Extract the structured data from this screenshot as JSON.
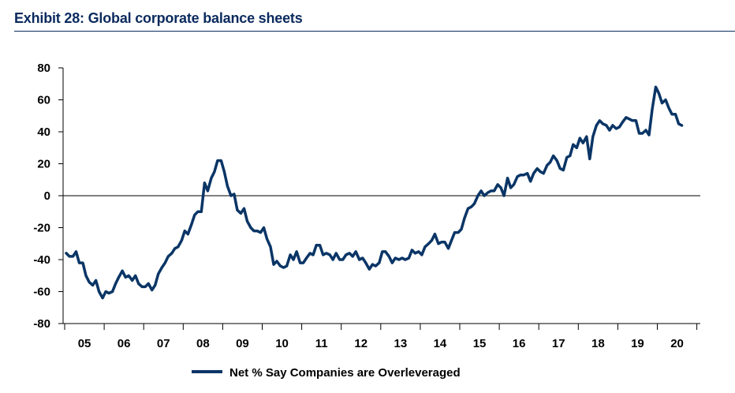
{
  "title": "Exhibit 28: Global corporate balance sheets",
  "colors": {
    "series": "#0a3566",
    "title": "#0a2a5e",
    "axis": "#000000"
  },
  "chart_data": {
    "type": "line",
    "ylim": [
      -80,
      80
    ],
    "yticks": [
      "80",
      "60",
      "40",
      "20",
      "0",
      "-20",
      "-40",
      "-60",
      "-80"
    ],
    "xlabels": [
      "05",
      "06",
      "07",
      "08",
      "09",
      "10",
      "11",
      "12",
      "13",
      "14",
      "15",
      "16",
      "17",
      "18",
      "19",
      "20"
    ],
    "legend_placement": "bottom-center",
    "grid": false,
    "series": [
      {
        "name": "Net % Say Companies are Overleveraged",
        "points": [
          [
            2005.0,
            -36
          ],
          [
            2005.08,
            -38
          ],
          [
            2005.17,
            -38
          ],
          [
            2005.25,
            -35
          ],
          [
            2005.33,
            -42
          ],
          [
            2005.42,
            -42
          ],
          [
            2005.5,
            -50
          ],
          [
            2005.58,
            -54
          ],
          [
            2005.67,
            -56
          ],
          [
            2005.75,
            -53
          ],
          [
            2005.83,
            -60
          ],
          [
            2005.92,
            -64
          ],
          [
            2006.0,
            -60
          ],
          [
            2006.08,
            -61
          ],
          [
            2006.17,
            -60
          ],
          [
            2006.25,
            -55
          ],
          [
            2006.33,
            -51
          ],
          [
            2006.42,
            -47
          ],
          [
            2006.5,
            -51
          ],
          [
            2006.58,
            -50
          ],
          [
            2006.67,
            -53
          ],
          [
            2006.75,
            -50
          ],
          [
            2006.83,
            -55
          ],
          [
            2006.92,
            -57
          ],
          [
            2007.0,
            -57
          ],
          [
            2007.08,
            -55
          ],
          [
            2007.17,
            -59
          ],
          [
            2007.25,
            -56
          ],
          [
            2007.33,
            -49
          ],
          [
            2007.42,
            -45
          ],
          [
            2007.5,
            -42
          ],
          [
            2007.58,
            -38
          ],
          [
            2007.67,
            -36
          ],
          [
            2007.75,
            -33
          ],
          [
            2007.83,
            -32
          ],
          [
            2007.92,
            -28
          ],
          [
            2008.0,
            -22
          ],
          [
            2008.08,
            -24
          ],
          [
            2008.17,
            -18
          ],
          [
            2008.25,
            -12
          ],
          [
            2008.33,
            -10
          ],
          [
            2008.42,
            -10
          ],
          [
            2008.5,
            8
          ],
          [
            2008.58,
            3
          ],
          [
            2008.67,
            11
          ],
          [
            2008.75,
            15
          ],
          [
            2008.83,
            22
          ],
          [
            2008.92,
            22
          ],
          [
            2009.0,
            15
          ],
          [
            2009.08,
            6
          ],
          [
            2009.17,
            0
          ],
          [
            2009.25,
            1
          ],
          [
            2009.33,
            -9
          ],
          [
            2009.42,
            -11
          ],
          [
            2009.5,
            -8
          ],
          [
            2009.58,
            -16
          ],
          [
            2009.67,
            -20
          ],
          [
            2009.75,
            -22
          ],
          [
            2009.83,
            -22
          ],
          [
            2009.92,
            -23
          ],
          [
            2010.0,
            -20
          ],
          [
            2010.08,
            -27
          ],
          [
            2010.17,
            -32
          ],
          [
            2010.25,
            -43
          ],
          [
            2010.33,
            -41
          ],
          [
            2010.42,
            -44
          ],
          [
            2010.5,
            -45
          ],
          [
            2010.58,
            -44
          ],
          [
            2010.67,
            -37
          ],
          [
            2010.75,
            -40
          ],
          [
            2010.83,
            -35
          ],
          [
            2010.92,
            -42
          ],
          [
            2011.0,
            -42
          ],
          [
            2011.08,
            -39
          ],
          [
            2011.17,
            -36
          ],
          [
            2011.25,
            -37
          ],
          [
            2011.33,
            -31
          ],
          [
            2011.42,
            -31
          ],
          [
            2011.5,
            -37
          ],
          [
            2011.58,
            -36
          ],
          [
            2011.67,
            -37
          ],
          [
            2011.75,
            -40
          ],
          [
            2011.83,
            -36
          ],
          [
            2011.92,
            -40
          ],
          [
            2012.0,
            -40
          ],
          [
            2012.08,
            -37
          ],
          [
            2012.17,
            -36
          ],
          [
            2012.25,
            -38
          ],
          [
            2012.33,
            -35
          ],
          [
            2012.42,
            -40
          ],
          [
            2012.5,
            -39
          ],
          [
            2012.58,
            -42
          ],
          [
            2012.67,
            -46
          ],
          [
            2012.75,
            -43
          ],
          [
            2012.83,
            -44
          ],
          [
            2012.92,
            -42
          ],
          [
            2013.0,
            -35
          ],
          [
            2013.08,
            -35
          ],
          [
            2013.17,
            -38
          ],
          [
            2013.25,
            -42
          ],
          [
            2013.33,
            -39
          ],
          [
            2013.42,
            -40
          ],
          [
            2013.5,
            -39
          ],
          [
            2013.58,
            -40
          ],
          [
            2013.67,
            -39
          ],
          [
            2013.75,
            -34
          ],
          [
            2013.83,
            -36
          ],
          [
            2013.92,
            -35
          ],
          [
            2014.0,
            -37
          ],
          [
            2014.08,
            -32
          ],
          [
            2014.17,
            -30
          ],
          [
            2014.25,
            -28
          ],
          [
            2014.33,
            -24
          ],
          [
            2014.42,
            -30
          ],
          [
            2014.5,
            -29
          ],
          [
            2014.58,
            -29
          ],
          [
            2014.67,
            -33
          ],
          [
            2014.75,
            -28
          ],
          [
            2014.83,
            -23
          ],
          [
            2014.92,
            -23
          ],
          [
            2015.0,
            -21
          ],
          [
            2015.08,
            -14
          ],
          [
            2015.17,
            -8
          ],
          [
            2015.25,
            -7
          ],
          [
            2015.33,
            -5
          ],
          [
            2015.42,
            0
          ],
          [
            2015.5,
            3
          ],
          [
            2015.58,
            0
          ],
          [
            2015.67,
            2
          ],
          [
            2015.75,
            3
          ],
          [
            2015.83,
            3
          ],
          [
            2015.92,
            7
          ],
          [
            2016.0,
            5
          ],
          [
            2016.08,
            0
          ],
          [
            2016.17,
            11
          ],
          [
            2016.25,
            5
          ],
          [
            2016.33,
            7
          ],
          [
            2016.42,
            12
          ],
          [
            2016.5,
            13
          ],
          [
            2016.58,
            13
          ],
          [
            2016.67,
            14
          ],
          [
            2016.75,
            9
          ],
          [
            2016.83,
            14
          ],
          [
            2016.92,
            17
          ],
          [
            2017.0,
            15
          ],
          [
            2017.08,
            14
          ],
          [
            2017.17,
            19
          ],
          [
            2017.25,
            21
          ],
          [
            2017.33,
            25
          ],
          [
            2017.42,
            22
          ],
          [
            2017.5,
            17
          ],
          [
            2017.58,
            16
          ],
          [
            2017.67,
            24
          ],
          [
            2017.75,
            25
          ],
          [
            2017.83,
            32
          ],
          [
            2017.92,
            30
          ],
          [
            2018.0,
            36
          ],
          [
            2018.08,
            33
          ],
          [
            2018.17,
            37
          ],
          [
            2018.25,
            23
          ],
          [
            2018.33,
            37
          ],
          [
            2018.42,
            44
          ],
          [
            2018.5,
            47
          ],
          [
            2018.58,
            45
          ],
          [
            2018.67,
            44
          ],
          [
            2018.75,
            41
          ],
          [
            2018.83,
            44
          ],
          [
            2018.92,
            42
          ],
          [
            2019.0,
            43
          ],
          [
            2019.08,
            46
          ],
          [
            2019.17,
            49
          ],
          [
            2019.25,
            48
          ],
          [
            2019.33,
            47
          ],
          [
            2019.42,
            47
          ],
          [
            2019.5,
            39
          ],
          [
            2019.58,
            39
          ],
          [
            2019.67,
            41
          ],
          [
            2019.75,
            38
          ],
          [
            2019.83,
            54
          ],
          [
            2019.92,
            68
          ],
          [
            2020.0,
            64
          ],
          [
            2020.08,
            58
          ],
          [
            2020.17,
            60
          ],
          [
            2020.25,
            55
          ],
          [
            2020.33,
            51
          ],
          [
            2020.42,
            51
          ],
          [
            2020.5,
            45
          ],
          [
            2020.58,
            44
          ]
        ]
      }
    ]
  }
}
